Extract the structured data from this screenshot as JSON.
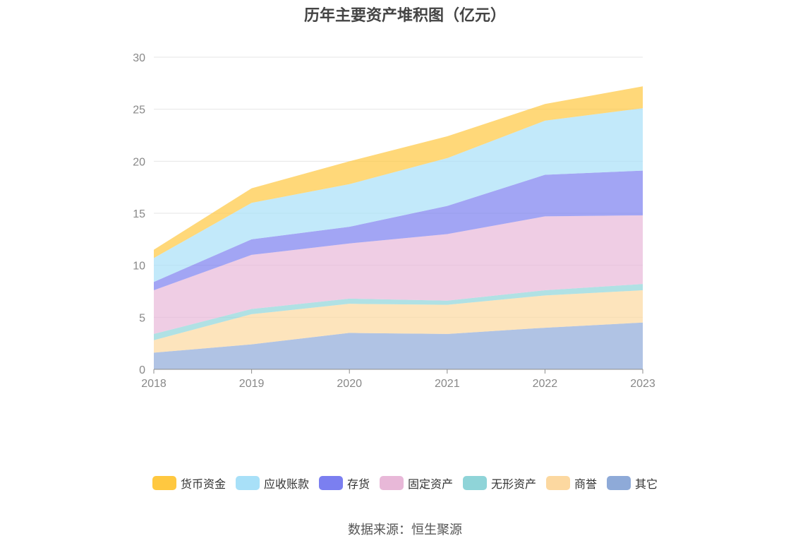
{
  "chart_data": {
    "type": "area",
    "title": "历年主要资产堆积图（亿元）",
    "categories": [
      "2018",
      "2019",
      "2020",
      "2021",
      "2022",
      "2023"
    ],
    "ylim": [
      0,
      30
    ],
    "yticks": [
      0,
      5,
      10,
      15,
      20,
      25,
      30
    ],
    "stacked": true,
    "grid": true,
    "legend_position": "bottom",
    "series": [
      {
        "name": "其它",
        "color": "#8eaad8",
        "values": [
          1.6,
          2.4,
          3.5,
          3.4,
          4.0,
          4.5
        ]
      },
      {
        "name": "商誉",
        "color": "#fcd8a0",
        "values": [
          1.2,
          2.9,
          2.8,
          2.8,
          3.1,
          3.1
        ]
      },
      {
        "name": "无形资产",
        "color": "#8fd4d8",
        "values": [
          0.6,
          0.5,
          0.5,
          0.4,
          0.5,
          0.6
        ]
      },
      {
        "name": "固定资产",
        "color": "#e8b8d8",
        "values": [
          4.2,
          5.2,
          5.3,
          6.4,
          7.1,
          6.6
        ]
      },
      {
        "name": "存货",
        "color": "#7b7ff0",
        "values": [
          0.8,
          1.5,
          1.6,
          2.7,
          4.0,
          4.3
        ]
      },
      {
        "name": "应收账款",
        "color": "#a8e0f8",
        "values": [
          2.3,
          3.5,
          4.1,
          4.6,
          5.2,
          6.0
        ]
      },
      {
        "name": "货币资金",
        "color": "#ffc840",
        "values": [
          0.8,
          1.4,
          2.2,
          2.1,
          1.6,
          2.1
        ]
      }
    ]
  },
  "legend_order": [
    "货币资金",
    "应收账款",
    "存货",
    "固定资产",
    "无形资产",
    "商誉",
    "其它"
  ],
  "source": "数据来源：恒生聚源"
}
